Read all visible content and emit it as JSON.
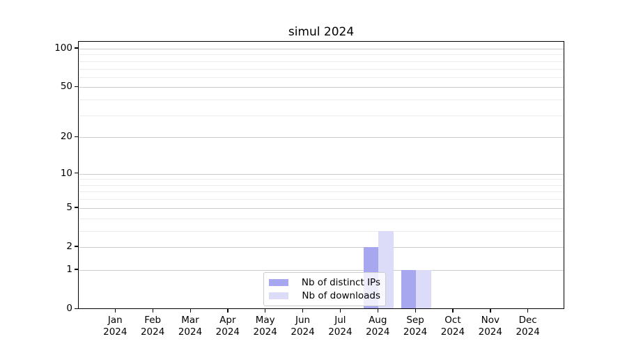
{
  "figure": {
    "title": "simul 2024"
  },
  "chart_data": {
    "type": "bar",
    "title": "simul 2024",
    "categories": [
      "Jan 2024",
      "Feb 2024",
      "Mar 2024",
      "Apr 2024",
      "May 2024",
      "Jun 2024",
      "Jul 2024",
      "Aug 2024",
      "Sep 2024",
      "Oct 2024",
      "Nov 2024",
      "Dec 2024"
    ],
    "month_labels": [
      "Jan",
      "Feb",
      "Mar",
      "Apr",
      "May",
      "Jun",
      "Jul",
      "Aug",
      "Sep",
      "Oct",
      "Nov",
      "Dec"
    ],
    "year_label": "2024",
    "series": [
      {
        "name": "Nb of distinct IPs",
        "color": "#a7a7f0",
        "values": [
          0,
          0,
          0,
          0,
          0,
          0,
          0,
          2,
          1,
          0,
          0,
          0
        ]
      },
      {
        "name": "Nb of downloads",
        "color": "#dcdcf8",
        "values": [
          0,
          0,
          0,
          0,
          0,
          0,
          0,
          3,
          1,
          0,
          0,
          0
        ]
      }
    ],
    "xlabel": "",
    "ylabel": "",
    "y_axis": {
      "scale": "log1p",
      "major_ticks": [
        0,
        1,
        2,
        5,
        10,
        20,
        50,
        100
      ],
      "minor_gridlines": [
        3,
        4,
        6,
        7,
        8,
        9,
        30,
        40,
        60,
        70,
        80,
        90
      ],
      "ylim": [
        0,
        113
      ]
    },
    "legend": {
      "position": "lower-center",
      "entries": [
        "Nb of distinct IPs",
        "Nb of downloads"
      ]
    },
    "grid": "horizontal, major and minor",
    "colors": {
      "background": "#ffffff",
      "spine": "#000000",
      "grid_major": "#cccccc",
      "grid_minor": "#ececec",
      "distinct_ips_bar": "#a7a7f0",
      "downloads_bar": "#dcdcf8"
    }
  }
}
